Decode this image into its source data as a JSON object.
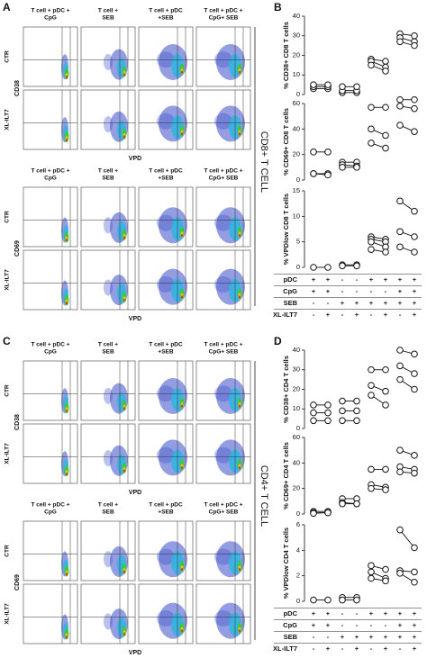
{
  "flow": [
    {
      "label": "A",
      "side_label": "CD8+ T CELL",
      "blocks": [
        {
          "column_headers": [
            [
              "T cell + pDC +",
              "CpG"
            ],
            [
              "T cell +",
              "SEB"
            ],
            [
              "T cell + pDC",
              "+SEB"
            ],
            [
              "T cell + pDC +",
              "CpG+ SEB"
            ]
          ],
          "row_labels": [
            "CTR",
            "XL-ILT7"
          ],
          "y_axis_label": "CD38",
          "x_axis_label": "VPD"
        },
        {
          "column_headers": [
            [
              "T cell + pDC +",
              "CpG"
            ],
            [
              "T cell +",
              "SEB"
            ],
            [
              "T cell + pDC",
              "+SEB"
            ],
            [
              "T cell + pDC +",
              "CpG+ SEB"
            ]
          ],
          "row_labels": [
            "CTR",
            "XL-ILT7"
          ],
          "y_axis_label": "CD69",
          "x_axis_label": "VPD"
        }
      ]
    },
    {
      "label": "C",
      "side_label": "CD4+ T CELL",
      "blocks": [
        {
          "column_headers": [
            [
              "T cell + pDC +",
              "CpG"
            ],
            [
              "T cell +",
              "SEB"
            ],
            [
              "T cell + pDC",
              "+SEB"
            ],
            [
              "T cell + pDC +",
              "CpG+ SEB"
            ]
          ],
          "row_labels": [
            "CTR",
            "XL-ILT7"
          ],
          "y_axis_label": "CD38",
          "x_axis_label": "VPD"
        },
        {
          "column_headers": [
            [
              "T cell + pDC +",
              "CpG"
            ],
            [
              "T cell +",
              "SEB"
            ],
            [
              "T cell + pDC",
              "+SEB"
            ],
            [
              "T cell + pDC +",
              "CpG+ SEB"
            ]
          ],
          "row_labels": [
            "CTR",
            "XL-ILT7"
          ],
          "y_axis_label": "CD69",
          "x_axis_label": "VPD"
        }
      ]
    }
  ],
  "dots": [
    {
      "label": "B",
      "charts": [
        {
          "type": "paired",
          "ylabel": "% CD38+ CD8 T cells",
          "ylim": [
            0,
            40
          ],
          "yticks": [
            0,
            10,
            20,
            30,
            40
          ],
          "groups": [
            {
              "ctr": [
                3,
                4,
                5
              ],
              "xl": [
                3,
                4,
                5
              ]
            },
            {
              "ctr": [
                1,
                2,
                4
              ],
              "xl": [
                1,
                2,
                4
              ]
            },
            {
              "ctr": [
                18,
                17,
                15
              ],
              "xl": [
                17,
                14,
                12
              ]
            },
            {
              "ctr": [
                31,
                29,
                27
              ],
              "xl": [
                30,
                27,
                25
              ]
            }
          ]
        },
        {
          "type": "paired",
          "ylabel": "% CD69+ CD8 T cells",
          "ylim": [
            0,
            60
          ],
          "yticks": [
            0,
            20,
            40,
            60
          ],
          "groups": [
            {
              "ctr": [
                22,
                5,
                5
              ],
              "xl": [
                22,
                5,
                4
              ]
            },
            {
              "ctr": [
                14,
                12,
                10
              ],
              "xl": [
                14,
                11,
                10
              ]
            },
            {
              "ctr": [
                57,
                40,
                29
              ],
              "xl": [
                57,
                35,
                25
              ]
            },
            {
              "ctr": [
                63,
                58,
                43
              ],
              "xl": [
                63,
                56,
                38
              ]
            }
          ]
        },
        {
          "type": "paired",
          "ylabel": "% VPDlow CD8 T cells",
          "ylim": [
            0,
            15
          ],
          "yticks": [
            0,
            5,
            10,
            15
          ],
          "groups": [
            {
              "ctr": [
                0
              ],
              "xl": [
                0
              ]
            },
            {
              "ctr": [
                0.5,
                0.3
              ],
              "xl": [
                0.5,
                0.3
              ]
            },
            {
              "ctr": [
                6,
                5.5,
                5,
                3.5
              ],
              "xl": [
                5.5,
                5,
                4,
                3
              ]
            },
            {
              "ctr": [
                13,
                7,
                4
              ],
              "xl": [
                11,
                6,
                3
              ]
            }
          ]
        }
      ],
      "conditions": [
        {
          "label": "pDC",
          "signs": [
            "+",
            "+",
            "-",
            "-",
            "+",
            "+",
            "+",
            "+"
          ]
        },
        {
          "label": "CpG",
          "signs": [
            "+",
            "+",
            "-",
            "-",
            "-",
            "-",
            "+",
            "+"
          ]
        },
        {
          "label": "SEB",
          "signs": [
            "-",
            "-",
            "+",
            "+",
            "+",
            "+",
            "+",
            "+"
          ]
        },
        {
          "label": "XL-ILT7",
          "signs": [
            "-",
            "+",
            "-",
            "+",
            "-",
            "+",
            "-",
            "+"
          ]
        }
      ]
    },
    {
      "label": "D",
      "charts": [
        {
          "type": "paired",
          "ylabel": "% CD38+ CD4 T cells",
          "ylim": [
            0,
            40
          ],
          "yticks": [
            0,
            10,
            20,
            30,
            40
          ],
          "groups": [
            {
              "ctr": [
                12,
                8,
                4
              ],
              "xl": [
                12,
                8,
                4
              ]
            },
            {
              "ctr": [
                14,
                9,
                4
              ],
              "xl": [
                14,
                9,
                4
              ]
            },
            {
              "ctr": [
                30,
                22,
                17
              ],
              "xl": [
                30,
                19,
                12
              ]
            },
            {
              "ctr": [
                40,
                32,
                25
              ],
              "xl": [
                38,
                28,
                20
              ]
            }
          ]
        },
        {
          "type": "paired",
          "ylabel": "% CD69+ CD4 T cells",
          "ylim": [
            0,
            60
          ],
          "yticks": [
            0,
            20,
            40,
            60
          ],
          "groups": [
            {
              "ctr": [
                2,
                1,
                0.5
              ],
              "xl": [
                2,
                1,
                1
              ]
            },
            {
              "ctr": [
                12,
                9,
                8
              ],
              "xl": [
                12,
                8,
                8
              ]
            },
            {
              "ctr": [
                35,
                23,
                20
              ],
              "xl": [
                35,
                21,
                19
              ]
            },
            {
              "ctr": [
                50,
                37,
                33
              ],
              "xl": [
                46,
                35,
                32
              ]
            }
          ]
        },
        {
          "type": "paired",
          "ylabel": "% VPDlow CD4 T cells",
          "ylim": [
            0,
            6
          ],
          "yticks": [
            0,
            2,
            4,
            6
          ],
          "groups": [
            {
              "ctr": [
                0.1
              ],
              "xl": [
                0.1
              ]
            },
            {
              "ctr": [
                0.3,
                0.1
              ],
              "xl": [
                0.3,
                0.1
              ]
            },
            {
              "ctr": [
                2.8,
                2.3,
                1.8
              ],
              "xl": [
                2.5,
                1.8,
                1.6
              ]
            },
            {
              "ctr": [
                5.6,
                2.4,
                2.2
              ],
              "xl": [
                4.2,
                2.3,
                1.5
              ]
            }
          ]
        }
      ],
      "conditions": [
        {
          "label": "pDC",
          "signs": [
            "+",
            "+",
            "-",
            "-",
            "+",
            "+",
            "+",
            "+"
          ]
        },
        {
          "label": "CpG",
          "signs": [
            "+",
            "+",
            "-",
            "-",
            "-",
            "-",
            "+",
            "+"
          ]
        },
        {
          "label": "SEB",
          "signs": [
            "-",
            "-",
            "+",
            "+",
            "+",
            "+",
            "+",
            "+"
          ]
        },
        {
          "label": "XL-ILT7",
          "signs": [
            "-",
            "+",
            "-",
            "+",
            "-",
            "+",
            "-",
            "+"
          ]
        }
      ]
    }
  ]
}
